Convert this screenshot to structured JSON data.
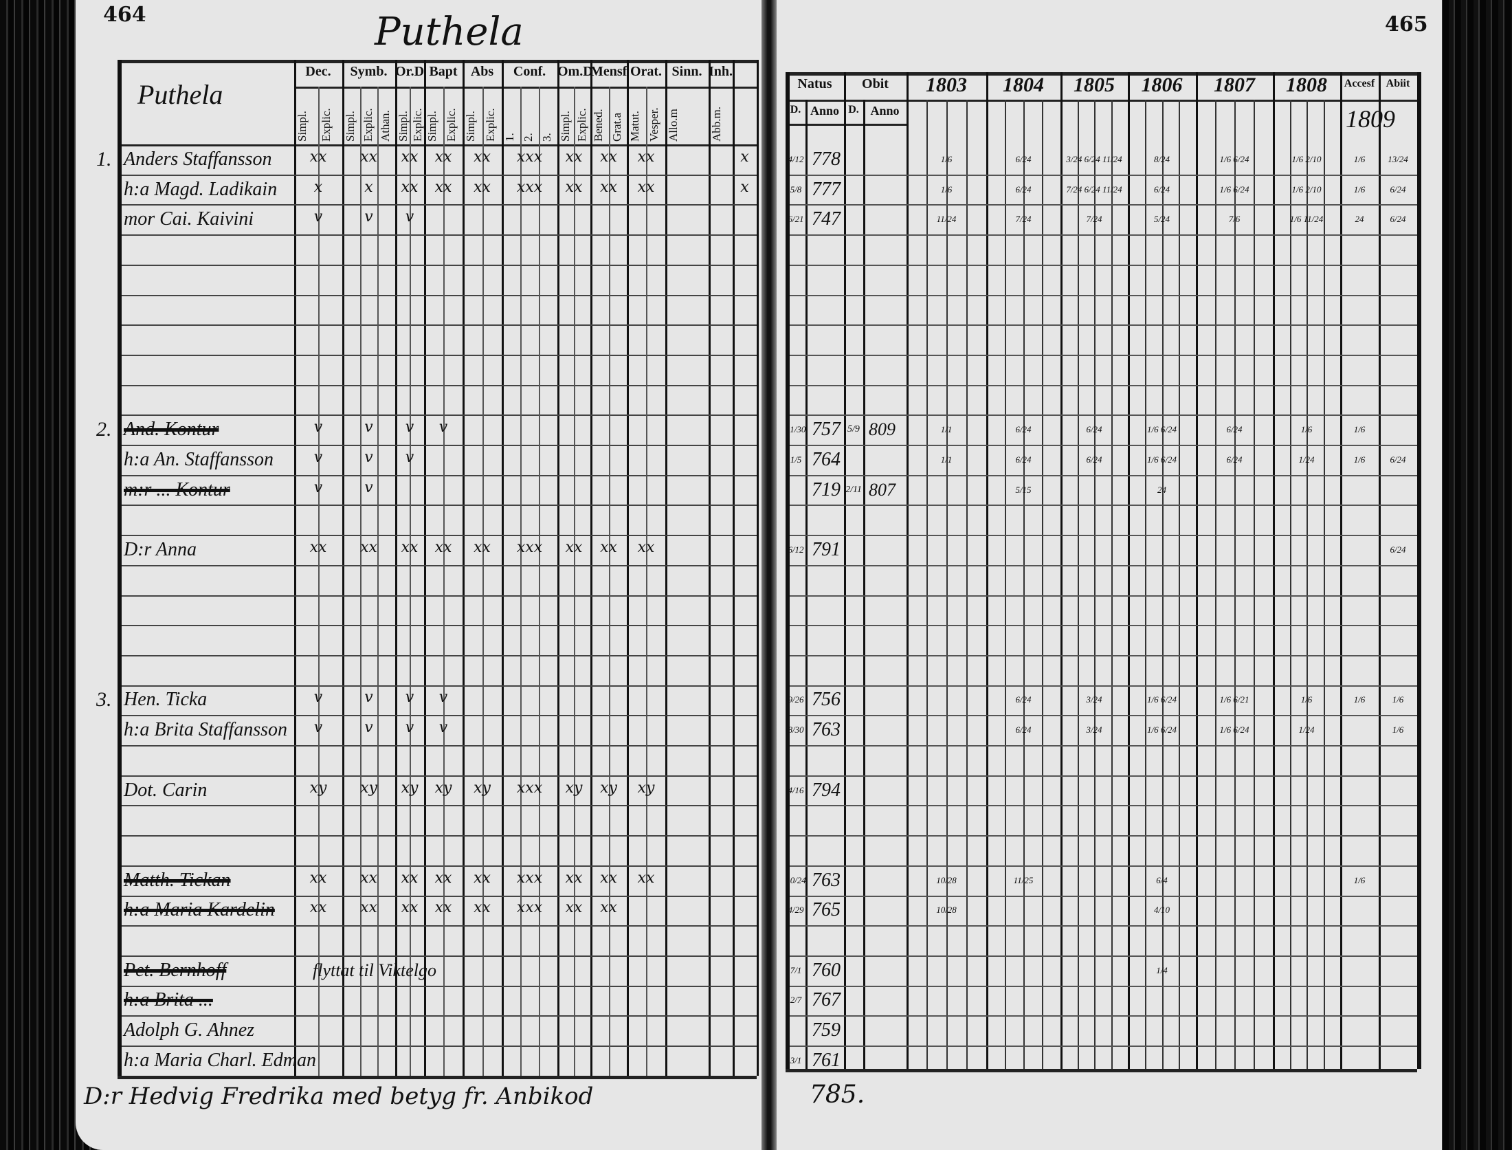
{
  "left_page": {
    "page_number": "464",
    "heading": "Puthela",
    "village_label": "Puthela",
    "columns": [
      {
        "group": "Dec.",
        "sub": [
          "Simpl.",
          "Explic."
        ]
      },
      {
        "group": "Symb.",
        "sub": [
          "Simpl.",
          "Explic.",
          "Athan."
        ]
      },
      {
        "group": "Or.D",
        "sub": [
          "Simpl.",
          "Explic."
        ]
      },
      {
        "group": "Bapt",
        "sub": [
          "Simpl.",
          "Explic."
        ]
      },
      {
        "group": "Abs",
        "sub": [
          "Simpl.",
          "Explic."
        ]
      },
      {
        "group": "Conf.",
        "sub": [
          "1.",
          "2.",
          "3."
        ]
      },
      {
        "group": "Om.D",
        "sub": [
          "Simpl.",
          "Explic."
        ]
      },
      {
        "group": "Mensf",
        "sub": [
          "Bened.",
          "Grat.a"
        ]
      },
      {
        "group": "Orat.",
        "sub": [
          "Matut.",
          "Vesper."
        ]
      },
      {
        "group": "Sinn.",
        "sub": [
          "Allo.m"
        ]
      },
      {
        "group": "Inh.",
        "sub": [
          "Abb.m."
        ]
      },
      {
        "group": "",
        "sub": [
          ""
        ]
      }
    ],
    "entries": [
      {
        "no": "1.",
        "name": "Anders Staffansson",
        "crossed": false,
        "marks": [
          "xx",
          "xx",
          "xx",
          "xx",
          "xx",
          "xxx",
          "xx",
          "xx",
          "xx",
          "",
          "",
          "x"
        ]
      },
      {
        "no": "",
        "name": "h:a Magd. Ladikain",
        "crossed": false,
        "marks": [
          "x",
          "x",
          "xx",
          "xx",
          "xx",
          "xxx",
          "xx",
          "xx",
          "xx",
          "",
          "",
          "x"
        ]
      },
      {
        "no": "",
        "name": "mor Cai. Kaivini",
        "crossed": false,
        "marks": [
          "v",
          "v",
          "v",
          "",
          "",
          "",
          "",
          "",
          "",
          "",
          "",
          ""
        ]
      },
      {
        "no": "2.",
        "name": "And. Kontur",
        "crossed": true,
        "marks": [
          "v",
          "v",
          "v",
          "v",
          "",
          "",
          "",
          "",
          "",
          "",
          "",
          ""
        ]
      },
      {
        "no": "",
        "name": "h:a An. Staffansson",
        "crossed": false,
        "marks": [
          "v",
          "v",
          "v",
          "",
          "",
          "",
          "",
          "",
          "",
          "",
          "",
          ""
        ]
      },
      {
        "no": "",
        "name": "m:r ... Kontur",
        "crossed": true,
        "marks": [
          "v",
          "v",
          "",
          "",
          "",
          "",
          "",
          "",
          "",
          "",
          "",
          ""
        ]
      },
      {
        "no": "",
        "name": "D:r Anna",
        "crossed": false,
        "marks": [
          "xx",
          "xx",
          "xx",
          "xx",
          "xx",
          "xxx",
          "xx",
          "xx",
          "xx",
          "",
          "",
          ""
        ]
      },
      {
        "no": "3.",
        "name": "Hen. Ticka",
        "crossed": false,
        "marks": [
          "v",
          "v",
          "v",
          "v",
          "",
          "",
          "",
          "",
          "",
          "",
          "",
          ""
        ]
      },
      {
        "no": "",
        "name": "h:a Brita Staffansson",
        "crossed": false,
        "marks": [
          "v",
          "v",
          "v",
          "v",
          "",
          "",
          "",
          "",
          "",
          "",
          "",
          ""
        ]
      },
      {
        "no": "",
        "name": "Dot. Carin",
        "crossed": false,
        "marks": [
          "xy",
          "xy",
          "xy",
          "xy",
          "xy",
          "xxx",
          "xy",
          "xy",
          "xy",
          "",
          "",
          ""
        ]
      },
      {
        "no": "",
        "name": "Matth. Tickan",
        "crossed": true,
        "marks": [
          "xx",
          "xx",
          "xx",
          "xx",
          "xx",
          "xxx",
          "xx",
          "xx",
          "xx",
          "",
          "",
          ""
        ]
      },
      {
        "no": "",
        "name": "h:a Maria Kardelin",
        "crossed": true,
        "marks": [
          "xx",
          "xx",
          "xx",
          "xx",
          "xx",
          "xxx",
          "xx",
          "xx",
          "",
          "",
          "",
          ""
        ]
      },
      {
        "no": "",
        "name": "Pet. Bernhoff",
        "crossed": true,
        "note": "flyttat til Viktelgo",
        "marks": []
      },
      {
        "no": "",
        "name": "h:a Brita ...",
        "crossed": true,
        "marks": []
      },
      {
        "no": "",
        "name": "Adolph G. Ahnez",
        "crossed": false,
        "marks": []
      },
      {
        "no": "",
        "name": "h:a Maria Charl. Edman",
        "crossed": false,
        "marks": []
      }
    ],
    "footer_note": "D:r Hedvig Fredrika med betyg fr. Anbikod"
  },
  "right_page": {
    "page_number": "465",
    "headers": {
      "natus": "Natus",
      "obit": "Obit",
      "d": "D.",
      "anno": "Anno",
      "years": [
        "1803",
        "1804",
        "1805",
        "1806",
        "1807",
        "1808"
      ],
      "accessit": "Accesf",
      "abiit": "Abiit",
      "accessit_year": "1809"
    },
    "entries": [
      {
        "natus_day": "4/12",
        "natus_year": "778",
        "obit_day": "",
        "obit_year": "",
        "years": [
          "1/6",
          "6/24",
          "3/24 6/24 11/24",
          "8/24",
          "1/6 6/24",
          "1/6 2/10"
        ],
        "accessit": "1/6",
        "abiit": "13/24"
      },
      {
        "natus_day": "5/8",
        "natus_year": "777",
        "obit_day": "",
        "obit_year": "",
        "years": [
          "1/6",
          "6/24",
          "7/24 6/24 11/24",
          "6/24",
          "1/6 6/24",
          "1/6 2/10"
        ],
        "accessit": "1/6",
        "abiit": "6/24"
      },
      {
        "natus_day": "6/21",
        "natus_year": "747",
        "obit_day": "",
        "obit_year": "",
        "years": [
          "11/24",
          "7/24",
          "7/24",
          "5/24",
          "7/6",
          "1/6 11/24"
        ],
        "accessit": "24",
        "abiit": "6/24"
      },
      {
        "natus_day": "11/30",
        "natus_year": "757",
        "obit_day": "5/9",
        "obit_year": "809",
        "years": [
          "1/1",
          "6/24",
          "6/24",
          "1/6 6/24",
          "6/24",
          "1/6"
        ],
        "accessit": "1/6",
        "abiit": ""
      },
      {
        "natus_day": "1/5",
        "natus_year": "764",
        "obit_day": "",
        "obit_year": "",
        "years": [
          "1/1",
          "6/24",
          "6/24",
          "1/6 6/24",
          "6/24",
          "1/24"
        ],
        "accessit": "1/6",
        "abiit": "6/24"
      },
      {
        "natus_day": "",
        "natus_year": "719",
        "obit_day": "2/11",
        "obit_year": "807",
        "years": [
          "",
          "5/15",
          "",
          "24",
          "",
          ""
        ],
        "accessit": "",
        "abiit": ""
      },
      {
        "natus_day": "6/12",
        "natus_year": "791",
        "obit_day": "",
        "obit_year": "",
        "years": [
          "",
          "",
          "",
          "",
          "",
          ""
        ],
        "accessit": "",
        "abiit": "6/24"
      },
      {
        "natus_day": "9/26",
        "natus_year": "756",
        "obit_day": "",
        "obit_year": "",
        "years": [
          "",
          "6/24",
          "3/24",
          "1/6 6/24",
          "1/6 6/21",
          "1/6"
        ],
        "accessit": "1/6",
        "abiit": "1/6"
      },
      {
        "natus_day": "8/30",
        "natus_year": "763",
        "obit_day": "",
        "obit_year": "",
        "years": [
          "",
          "6/24",
          "3/24",
          "1/6 6/24",
          "1/6 6/24",
          "1/24"
        ],
        "accessit": "",
        "abiit": "1/6"
      },
      {
        "natus_day": "4/16",
        "natus_year": "794",
        "obit_day": "",
        "obit_year": "",
        "years": [
          "",
          "",
          "",
          "",
          "",
          ""
        ],
        "accessit": "",
        "abiit": ""
      },
      {
        "natus_day": "10/24",
        "natus_year": "763",
        "obit_day": "",
        "obit_year": "",
        "years": [
          "10/28",
          "11/25",
          "",
          "6/4",
          "",
          ""
        ],
        "accessit": "1/6",
        "abiit": ""
      },
      {
        "natus_day": "4/29",
        "natus_year": "765",
        "obit_day": "",
        "obit_year": "",
        "years": [
          "10/28",
          "",
          "",
          "4/10",
          "",
          ""
        ],
        "accessit": "",
        "abiit": ""
      },
      {
        "natus_day": "7/1",
        "natus_year": "760",
        "obit_day": "",
        "obit_year": "",
        "years": [
          "",
          "",
          "",
          "1/4",
          "",
          ""
        ],
        "accessit": "",
        "abiit": ""
      },
      {
        "natus_day": "2/7",
        "natus_year": "767",
        "obit_day": "",
        "obit_year": "",
        "years": [
          "",
          "",
          "",
          "",
          "",
          ""
        ],
        "accessit": "",
        "abiit": ""
      },
      {
        "natus_day": "",
        "natus_year": "759",
        "obit_day": "",
        "obit_year": "",
        "years": [
          "",
          "",
          "",
          "",
          "",
          ""
        ],
        "accessit": "",
        "abiit": ""
      },
      {
        "natus_day": "3/1",
        "natus_year": "761",
        "obit_day": "",
        "obit_year": "",
        "years": [
          "",
          "",
          "",
          "",
          "",
          ""
        ],
        "accessit": "",
        "abiit": ""
      }
    ],
    "footer_year": "785."
  }
}
